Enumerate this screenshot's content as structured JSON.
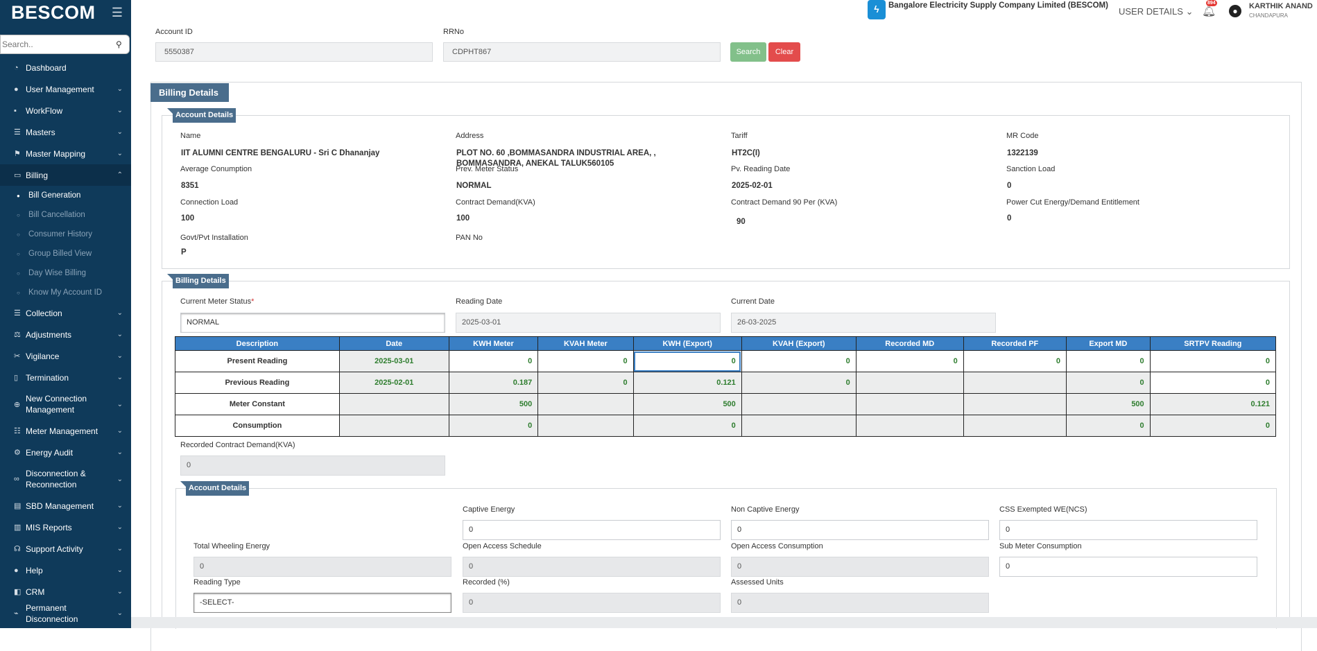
{
  "sidebar": {
    "brand": "BESCOM",
    "search_placeholder": "Search..",
    "nav": [
      {
        "label": "Dashboard",
        "icon": "dashboard-icon",
        "glyph": "◔",
        "chevron": false
      },
      {
        "label": "User Management",
        "icon": "user-icon",
        "glyph": "●",
        "chevron": true
      },
      {
        "label": "WorkFlow",
        "icon": "briefcase-icon",
        "glyph": "▪",
        "chevron": true
      },
      {
        "label": "Masters",
        "icon": "list-icon",
        "glyph": "☰",
        "chevron": true
      },
      {
        "label": "Master Mapping",
        "icon": "sitemap-icon",
        "glyph": "⚑",
        "chevron": true
      }
    ],
    "billing": {
      "label": "Billing",
      "icon": "monitor-icon",
      "glyph": "▭"
    },
    "billing_sub": [
      "Bill Generation",
      "Bill Cancellation",
      "Consumer History",
      "Group Billed View",
      "Day Wise Billing",
      "Know My Account ID"
    ],
    "nav2": [
      {
        "label": "Collection",
        "icon": "collection-icon",
        "glyph": "☰",
        "tall": false
      },
      {
        "label": "Adjustments",
        "icon": "adjust-icon",
        "glyph": "⚖",
        "tall": false
      },
      {
        "label": "Vigilance",
        "icon": "vigilance-icon",
        "glyph": "✂",
        "tall": false
      },
      {
        "label": "Termination",
        "icon": "trash-icon",
        "glyph": "▯",
        "tall": false
      },
      {
        "label": "New Connection Management",
        "icon": "plus-circle-icon",
        "glyph": "⊕",
        "tall": true
      },
      {
        "label": "Meter Management",
        "icon": "meter-icon",
        "glyph": "☷",
        "tall": false
      },
      {
        "label": "Energy Audit",
        "icon": "cogs-icon",
        "glyph": "⚙",
        "tall": false
      },
      {
        "label": "Disconnection & Reconnection",
        "icon": "link-icon",
        "glyph": "∞",
        "tall": true
      },
      {
        "label": "SBD Management",
        "icon": "building-icon",
        "glyph": "▤",
        "tall": false
      },
      {
        "label": "MIS Reports",
        "icon": "chart-icon",
        "glyph": "▥",
        "tall": false
      },
      {
        "label": "Support Activity",
        "icon": "headset-icon",
        "glyph": "☊",
        "tall": false
      },
      {
        "label": "Help",
        "icon": "help-icon",
        "glyph": "●",
        "tall": false
      },
      {
        "label": "CRM",
        "icon": "crm-icon",
        "glyph": "◧",
        "tall": false
      },
      {
        "label": "Permanent Disconnection",
        "icon": "unplug-icon",
        "glyph": "⌁",
        "tall": false
      }
    ]
  },
  "header": {
    "company": "Bangalore Electricity Supply Company Limited (BESCOM)",
    "user_details": "USER DETAILS",
    "notif_count": "894",
    "user_name": "KARTHIK ANAND",
    "user_location": "CHANDAPURA"
  },
  "search": {
    "account_id_label": "Account ID",
    "account_id_value": "5550387",
    "rrno_label": "RRNo",
    "rrno_value": "CDPHT867",
    "search_label": "Search",
    "clear_label": "Clear"
  },
  "billing_title": "Billing Details",
  "account_details": {
    "title": "Account Details",
    "fields": [
      {
        "label": "Name",
        "value": "IIT ALUMNI CENTRE BENGALURU - Sri C Dhananjay"
      },
      {
        "label": "Address",
        "value": "PLOT NO. 60 ,BOMMASANDRA INDUSTRIAL AREA,   ,",
        "value2": "BOMMASANDRA, ANEKAL TALUK560105"
      },
      {
        "label": "Tariff",
        "value": "HT2C(I)"
      },
      {
        "label": "MR Code",
        "value": "1322139"
      },
      {
        "label": "Average Conumption",
        "value": "8351"
      },
      {
        "label": "Prev. Meter Status",
        "value": "NORMAL"
      },
      {
        "label": "Pv. Reading Date",
        "value": "2025-02-01"
      },
      {
        "label": "Sanction Load",
        "value": "0"
      },
      {
        "label": "Connection Load",
        "value": "100"
      },
      {
        "label": "Contract Demand(KVA)",
        "value": "100"
      },
      {
        "label": "Contract Demand 90 Per (KVA)",
        "value": "90"
      },
      {
        "label": "Power Cut Energy/Demand Entitlement",
        "value": "0"
      },
      {
        "label": "Govt/Pvt Installation",
        "value": "P"
      },
      {
        "label": "PAN No",
        "value": ""
      }
    ]
  },
  "billing_details": {
    "title": "Billing Details",
    "meter_status_label": "Current Meter Status",
    "required_mark": "*",
    "meter_status_value": "NORMAL",
    "reading_date_label": "Reading Date",
    "reading_date_value": "2025-03-01",
    "current_date_label": "Current Date",
    "current_date_value": "26-03-2025",
    "table": {
      "headers": [
        "Description",
        "Date",
        "KWH Meter",
        "KVAH Meter",
        "KWH (Export)",
        "KVAH (Export)",
        "Recorded MD",
        "Recorded PF",
        "Export MD",
        "SRTPV Reading"
      ],
      "rows": [
        [
          "Present Reading",
          "2025-03-01",
          "0",
          "0",
          "0",
          "0",
          "0",
          "0",
          "0",
          "0"
        ],
        [
          "Previous Reading",
          "2025-02-01",
          "0.187",
          "0",
          "0.121",
          "0",
          "",
          "",
          "0",
          "0"
        ],
        [
          "Meter Constant",
          "",
          "500",
          "",
          "500",
          "",
          "",
          "",
          "500",
          "0.121"
        ],
        [
          "Consumption",
          "",
          "0",
          "",
          "0",
          "",
          "",
          "",
          "0",
          "0"
        ]
      ]
    },
    "recorded_cd_label": "Recorded Contract Demand(KVA)",
    "recorded_cd_value": "0"
  },
  "energy_details": {
    "title": "Account Details",
    "captive_label": "Captive Energy",
    "captive_value": "0",
    "non_captive_label": "Non Captive Energy",
    "non_captive_value": "0",
    "css_label": "CSS Exempted WE(NCS)",
    "css_value": "0",
    "wheeling_label": "Total Wheeling Energy",
    "wheeling_value": "0",
    "oa_schedule_label": "Open Access Schedule",
    "oa_schedule_value": "0",
    "oa_consumption_label": "Open Access Consumption",
    "oa_consumption_value": "0",
    "sub_meter_label": "Sub Meter Consumption",
    "sub_meter_value": "0",
    "reading_type_label": "Reading Type",
    "reading_type_value": "-SELECT-",
    "recorded_pct_label": "Recorded (%)",
    "recorded_pct_value": "0",
    "assessed_label": "Assessed Units",
    "assessed_value": "0"
  }
}
